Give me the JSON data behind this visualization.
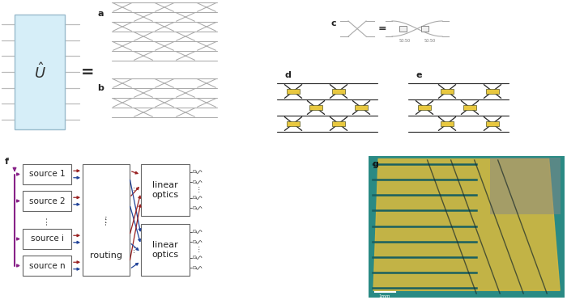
{
  "bg_color": "#ffffff",
  "light_blue": "#d6eef8",
  "gray_wg": "#aaaaaa",
  "dark": "#333333",
  "yellow": "#e8c840",
  "purple": "#882288",
  "red_col": "#992222",
  "blue_col": "#224499",
  "panel_label_size": 8,
  "source_labels": [
    "source 1",
    "source 2",
    "source i",
    "source n"
  ],
  "routing_label": "routing",
  "lo_label": "linear\noptics",
  "fig_w": 7.0,
  "fig_h": 3.71,
  "dpi": 100
}
